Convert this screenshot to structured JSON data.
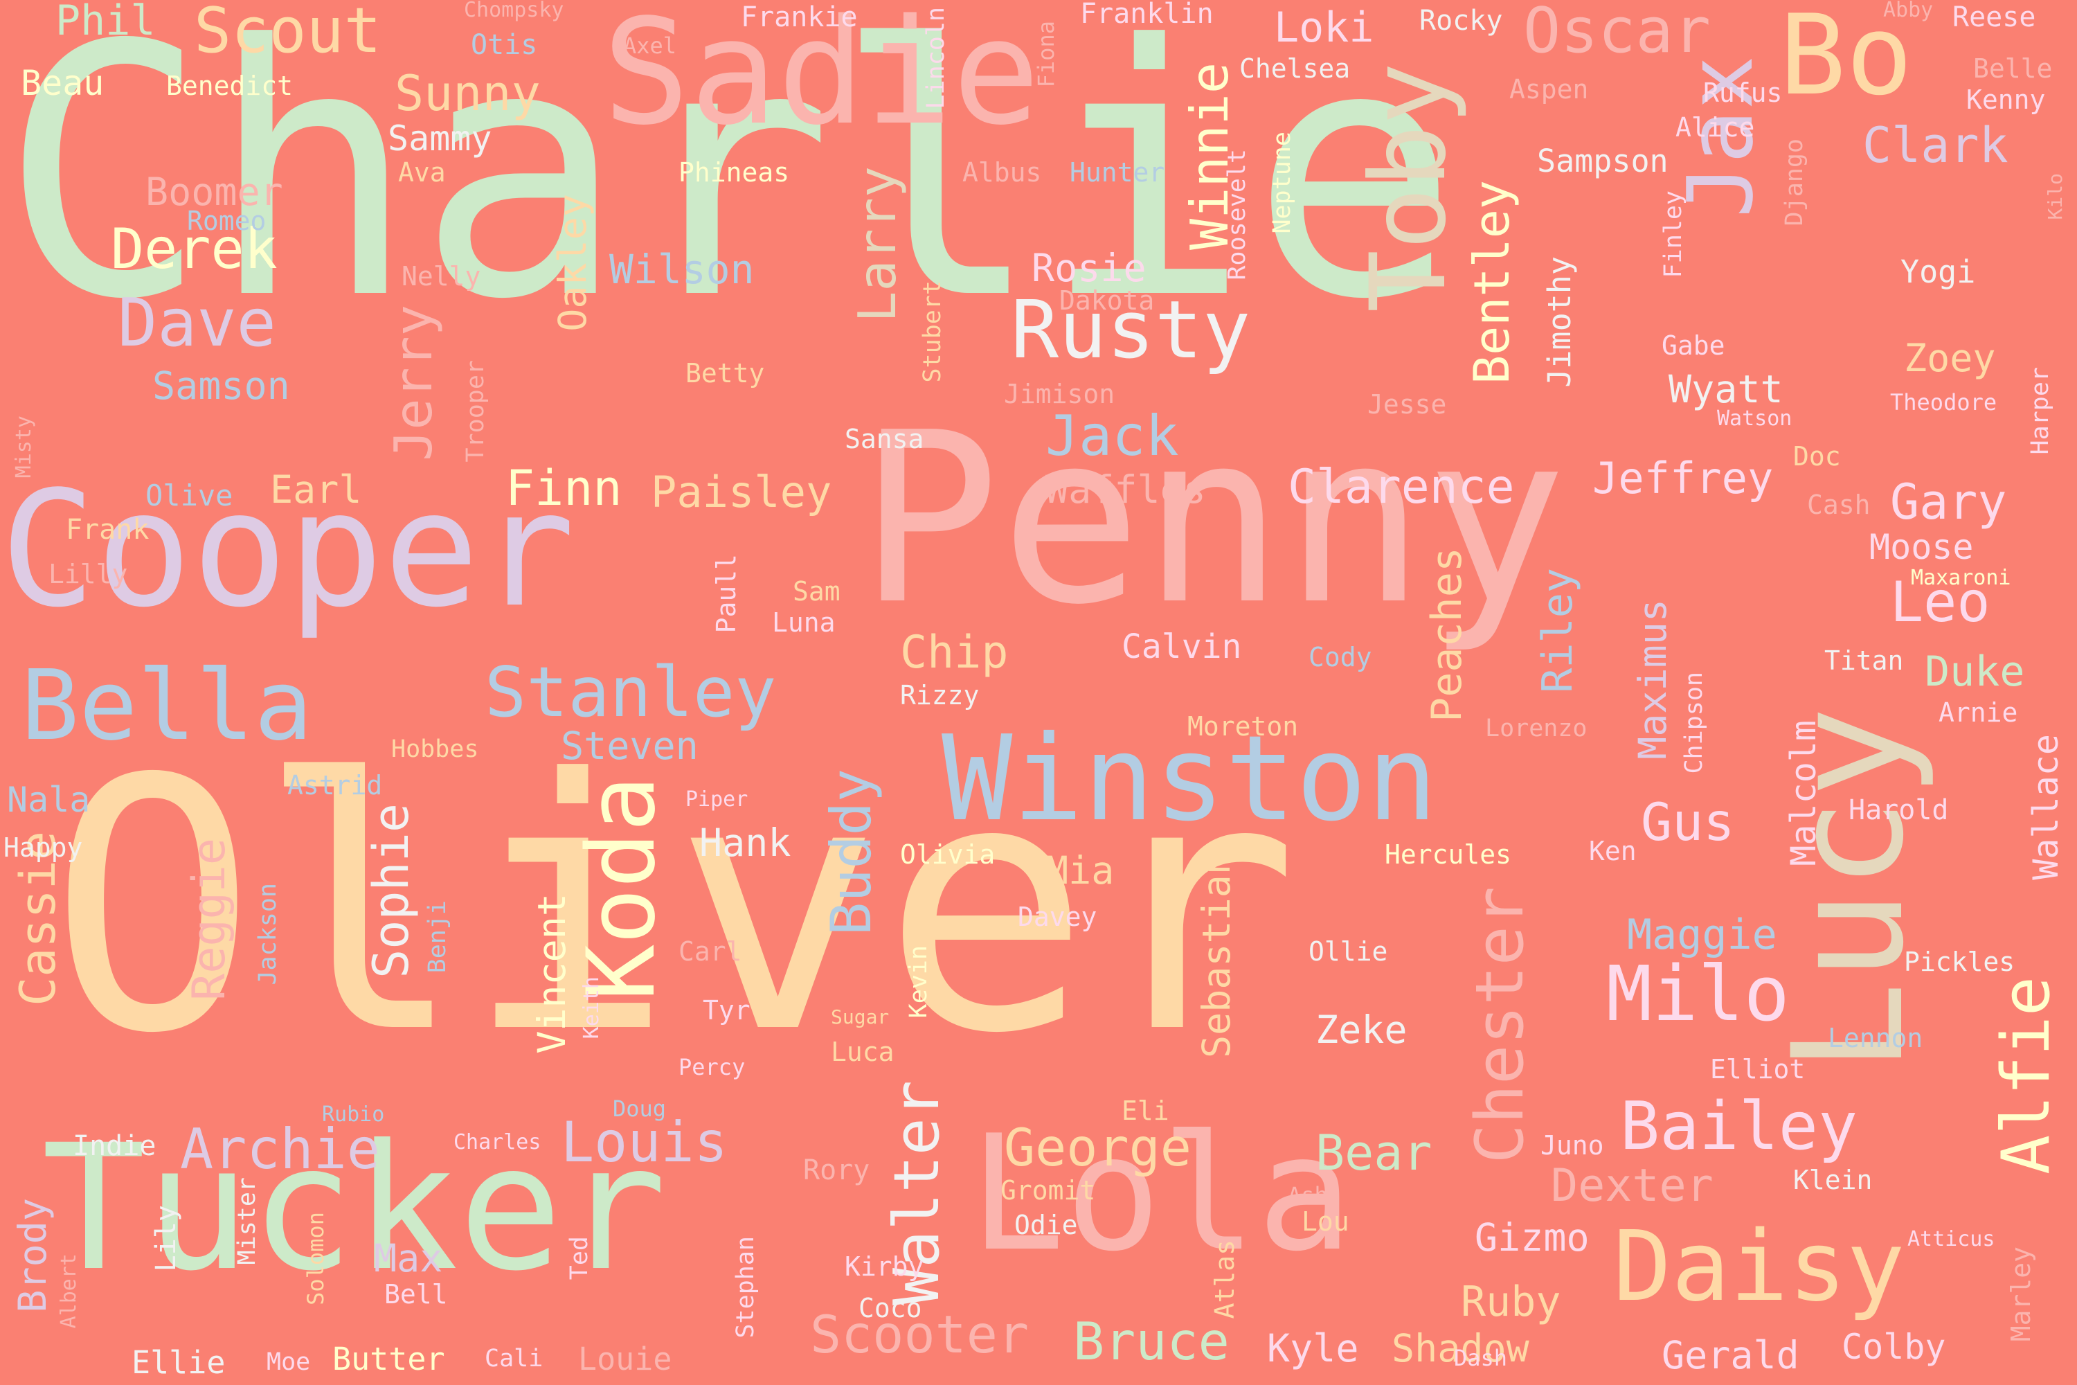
{
  "background_color": "#fa8072",
  "palette": {
    "green": "#cdeac9",
    "peach": "#fed9a6",
    "pink": "#fbb4ae",
    "blue": "#b3cde3",
    "lavender": "#decbe4",
    "tan": "#e5d8bd",
    "yellow": "#ffffcc",
    "rose": "#fddaec",
    "white": "#f2f2f2"
  },
  "words": [
    {
      "text": "Charlie",
      "color": "#cdeac9"
    },
    {
      "text": "Oliver",
      "color": "#fed9a6"
    },
    {
      "text": "Penny",
      "color": "#fbb4ae"
    },
    {
      "text": "Cooper",
      "color": "#decbe4"
    },
    {
      "text": "Tucker",
      "color": "#cdeac9"
    },
    {
      "text": "Sadie",
      "color": "#fbb4ae"
    },
    {
      "text": "Lola",
      "color": "#fbb4ae"
    },
    {
      "text": "Lucy",
      "color": "#e5d8bd"
    },
    {
      "text": "Winston",
      "color": "#b3cde3"
    },
    {
      "text": "Bo",
      "color": "#fed9a6"
    },
    {
      "text": "Daisy",
      "color": "#fed9a6"
    },
    {
      "text": "Toby",
      "color": "#e5d8bd"
    },
    {
      "text": "Bella",
      "color": "#b3cde3"
    },
    {
      "text": "Koda",
      "color": "#ffffcc"
    },
    {
      "text": "Jax",
      "color": "#decbe4"
    },
    {
      "text": "Rusty",
      "color": "#f2f2f2"
    },
    {
      "text": "Milo",
      "color": "#fddaec"
    },
    {
      "text": "Stanley",
      "color": "#b3cde3"
    },
    {
      "text": "Bailey",
      "color": "#fddaec"
    },
    {
      "text": "Chester",
      "color": "#fbb4ae"
    },
    {
      "text": "Alfie",
      "color": "#ffffcc"
    },
    {
      "text": "Walter",
      "color": "#f2f2f2"
    },
    {
      "text": "Archie",
      "color": "#decbe4"
    },
    {
      "text": "Louis",
      "color": "#decbe4"
    },
    {
      "text": "Scooter",
      "color": "#fbb4ae"
    },
    {
      "text": "Bruce",
      "color": "#cdeac9"
    },
    {
      "text": "Oscar",
      "color": "#fbb4ae"
    },
    {
      "text": "Scout",
      "color": "#fed9a6"
    },
    {
      "text": "Dave",
      "color": "#decbe4"
    },
    {
      "text": "Winnie",
      "color": "#ffffcc"
    },
    {
      "text": "Larry",
      "color": "#e5d8bd"
    },
    {
      "text": "George",
      "color": "#fed9a6"
    },
    {
      "text": "Buddy",
      "color": "#b3cde3"
    },
    {
      "text": "Jack",
      "color": "#b3cde3"
    },
    {
      "text": "Leo",
      "color": "#fddaec"
    },
    {
      "text": "Derek",
      "color": "#ffffcc"
    },
    {
      "text": "Sophie",
      "color": "#f2f2f2"
    },
    {
      "text": "Gus",
      "color": "#fddaec"
    },
    {
      "text": "Bentley",
      "color": "#ffffcc"
    },
    {
      "text": "Gary",
      "color": "#fddaec"
    },
    {
      "text": "Bear",
      "color": "#cdeac9"
    },
    {
      "text": "Dexter",
      "color": "#fbb4ae"
    },
    {
      "text": "Jerry",
      "color": "#fbb4ae"
    },
    {
      "text": "Sunny",
      "color": "#fed9a6"
    },
    {
      "text": "Clarence",
      "color": "#fddaec"
    },
    {
      "text": "Clark",
      "color": "#decbe4"
    },
    {
      "text": "Finn",
      "color": "#ffffcc"
    },
    {
      "text": "Paisley",
      "color": "#fed9a6"
    },
    {
      "text": "Jeffrey",
      "color": "#fddaec"
    },
    {
      "text": "Maggie",
      "color": "#b3cde3"
    },
    {
      "text": "Cassie",
      "color": "#fed9a6"
    },
    {
      "text": "Reggie",
      "color": "#fbb4ae"
    },
    {
      "text": "Riley",
      "color": "#b3cde3"
    },
    {
      "text": "Peaches",
      "color": "#fed9a6"
    },
    {
      "text": "Vincent",
      "color": "#ffffcc"
    },
    {
      "text": "Sebastian",
      "color": "#fed9a6"
    },
    {
      "text": "Chip",
      "color": "#fed9a6"
    },
    {
      "text": "Phil",
      "color": "#cdeac9"
    },
    {
      "text": "Wilson",
      "color": "#b3cde3"
    },
    {
      "text": "Samson",
      "color": "#b3cde3"
    },
    {
      "text": "Boomer",
      "color": "#fbb4ae"
    },
    {
      "text": "Oakley",
      "color": "#fed9a6"
    },
    {
      "text": "Rosie",
      "color": "#fddaec"
    },
    {
      "text": "Waffles",
      "color": "#fbb4ae"
    },
    {
      "text": "Wyatt",
      "color": "#f2f2f2"
    },
    {
      "text": "Zoey",
      "color": "#fed9a6"
    },
    {
      "text": "Moose",
      "color": "#fddaec"
    },
    {
      "text": "Duke",
      "color": "#cdeac9"
    },
    {
      "text": "Maximus",
      "color": "#decbe4"
    },
    {
      "text": "Malcolm",
      "color": "#fddaec"
    },
    {
      "text": "Wallace",
      "color": "#fddaec"
    },
    {
      "text": "Max",
      "color": "#decbe4"
    },
    {
      "text": "Brody",
      "color": "#decbe4"
    },
    {
      "text": "Earl",
      "color": "#fed9a6"
    },
    {
      "text": "Steven",
      "color": "#b3cde3"
    },
    {
      "text": "Hank",
      "color": "#f2f2f2"
    },
    {
      "text": "Mia",
      "color": "#fed9a6"
    },
    {
      "text": "Zeke",
      "color": "#f2f2f2"
    },
    {
      "text": "Gizmo",
      "color": "#fddaec"
    },
    {
      "text": "Ruby",
      "color": "#fed9a6"
    },
    {
      "text": "Shadow",
      "color": "#fed9a6"
    },
    {
      "text": "Kyle",
      "color": "#fddaec"
    },
    {
      "text": "Gerald",
      "color": "#fddaec"
    },
    {
      "text": "Colby",
      "color": "#fddaec"
    },
    {
      "text": "Calvin",
      "color": "#fddaec"
    },
    {
      "text": "Jimothy",
      "color": "#f2f2f2"
    },
    {
      "text": "Sammy",
      "color": "#f2f2f2"
    },
    {
      "text": "Beau",
      "color": "#ffffcc"
    },
    {
      "text": "Loki",
      "color": "#fddaec"
    },
    {
      "text": "Sampson",
      "color": "#f2f2f2"
    },
    {
      "text": "Ellie",
      "color": "#f2f2f2"
    },
    {
      "text": "Butter",
      "color": "#ffffcc"
    },
    {
      "text": "Nala",
      "color": "#b3cde3"
    },
    {
      "text": "Louie",
      "color": "#fbb4ae"
    },
    {
      "text": "Indie",
      "color": "#f2f2f2"
    },
    {
      "text": "Frankie",
      "color": "#fddaec"
    },
    {
      "text": "Franklin",
      "color": "#fddaec"
    },
    {
      "text": "Rocky",
      "color": "#f2f2f2"
    },
    {
      "text": "Reese",
      "color": "#fddaec"
    },
    {
      "text": "Otis",
      "color": "#b3cde3"
    },
    {
      "text": "Chelsea",
      "color": "#f2f2f2"
    },
    {
      "text": "Rufus",
      "color": "#fddaec"
    },
    {
      "text": "Aspen",
      "color": "#fbb4ae"
    },
    {
      "text": "Alice",
      "color": "#fddaec"
    },
    {
      "text": "Kenny",
      "color": "#fddaec"
    },
    {
      "text": "Belle",
      "color": "#fbb4ae"
    },
    {
      "text": "Benedict",
      "color": "#ffffcc"
    },
    {
      "text": "Phineas",
      "color": "#ffffcc"
    },
    {
      "text": "Hunter",
      "color": "#b3cde3"
    },
    {
      "text": "Albus",
      "color": "#fbb4ae"
    },
    {
      "text": "Roosevelt",
      "color": "#fddaec"
    },
    {
      "text": "Neptune",
      "color": "#ffffcc"
    },
    {
      "text": "Lincoln",
      "color": "#fddaec"
    },
    {
      "text": "Fiona",
      "color": "#fbb4ae"
    },
    {
      "text": "Axel",
      "color": "#fbb4ae"
    },
    {
      "text": "Chompsky",
      "color": "#fbb4ae"
    },
    {
      "text": "Abby",
      "color": "#fbb4ae"
    },
    {
      "text": "Ava",
      "color": "#fed9a6"
    },
    {
      "text": "Romeo",
      "color": "#b3cde3"
    },
    {
      "text": "Nelly",
      "color": "#fbb4ae"
    },
    {
      "text": "Dakota",
      "color": "#fbb4ae"
    },
    {
      "text": "Betty",
      "color": "#fed9a6"
    },
    {
      "text": "Gabe",
      "color": "#fddaec"
    },
    {
      "text": "Finley",
      "color": "#fddaec"
    },
    {
      "text": "Django",
      "color": "#fbb4ae"
    },
    {
      "text": "Yogi",
      "color": "#f2f2f2"
    },
    {
      "text": "Kilo",
      "color": "#fbb4ae"
    },
    {
      "text": "Theodore",
      "color": "#fddaec"
    },
    {
      "text": "Harper",
      "color": "#fddaec"
    },
    {
      "text": "Watson",
      "color": "#fddaec"
    },
    {
      "text": "Jesse",
      "color": "#fbb4ae"
    },
    {
      "text": "Jimison",
      "color": "#fbb4ae"
    },
    {
      "text": "Stubert",
      "color": "#fed9a6"
    },
    {
      "text": "Sansa",
      "color": "#f2f2f2"
    },
    {
      "text": "Trooper",
      "color": "#fbb4ae"
    },
    {
      "text": "Misty",
      "color": "#fbb4ae"
    },
    {
      "text": "Olive",
      "color": "#b3cde3"
    },
    {
      "text": "Frank",
      "color": "#fed9a6"
    },
    {
      "text": "Lilly",
      "color": "#fbb4ae"
    },
    {
      "text": "Doc",
      "color": "#fed9a6"
    },
    {
      "text": "Cash",
      "color": "#fbb4ae"
    },
    {
      "text": "Maxaroni",
      "color": "#ffffcc"
    },
    {
      "text": "Titan",
      "color": "#f2f2f2"
    },
    {
      "text": "Arnie",
      "color": "#fddaec"
    },
    {
      "text": "Harold",
      "color": "#fddaec"
    },
    {
      "text": "Paull",
      "color": "#fddaec"
    },
    {
      "text": "Sam",
      "color": "#fed9a6"
    },
    {
      "text": "Luna",
      "color": "#fddaec"
    },
    {
      "text": "Rizzy",
      "color": "#f2f2f2"
    },
    {
      "text": "Cody",
      "color": "#b3cde3"
    },
    {
      "text": "Lorenzo",
      "color": "#fbb4ae"
    },
    {
      "text": "Chipson",
      "color": "#fddaec"
    },
    {
      "text": "Moreton",
      "color": "#fed9a6"
    },
    {
      "text": "Hobbes",
      "color": "#fed9a6"
    },
    {
      "text": "Astrid",
      "color": "#b3cde3"
    },
    {
      "text": "Piper",
      "color": "#fddaec"
    },
    {
      "text": "Happy",
      "color": "#f2f2f2"
    },
    {
      "text": "Benji",
      "color": "#b3cde3"
    },
    {
      "text": "Jackson",
      "color": "#b3cde3"
    },
    {
      "text": "Olivia",
      "color": "#ffffcc"
    },
    {
      "text": "Davey",
      "color": "#fddaec"
    },
    {
      "text": "Hercules",
      "color": "#ffffcc"
    },
    {
      "text": "Ken",
      "color": "#fddaec"
    },
    {
      "text": "Ollie",
      "color": "#f2f2f2"
    },
    {
      "text": "Pickles",
      "color": "#f2f2f2"
    },
    {
      "text": "Carl",
      "color": "#fbb4ae"
    },
    {
      "text": "Keith",
      "color": "#fddaec"
    },
    {
      "text": "Kevin",
      "color": "#ffffcc"
    },
    {
      "text": "Tyr",
      "color": "#fddaec"
    },
    {
      "text": "Sugar",
      "color": "#fed9a6"
    },
    {
      "text": "Percy",
      "color": "#fddaec"
    },
    {
      "text": "Luca",
      "color": "#fed9a6"
    },
    {
      "text": "Lennon",
      "color": "#b3cde3"
    },
    {
      "text": "Elliot",
      "color": "#fddaec"
    },
    {
      "text": "Rubio",
      "color": "#b3cde3"
    },
    {
      "text": "Doug",
      "color": "#b3cde3"
    },
    {
      "text": "Eli",
      "color": "#fed9a6"
    },
    {
      "text": "Charles",
      "color": "#fddaec"
    },
    {
      "text": "Rory",
      "color": "#fbb4ae"
    },
    {
      "text": "Juno",
      "color": "#fddaec"
    },
    {
      "text": "Gromit",
      "color": "#fed9a6"
    },
    {
      "text": "Klein",
      "color": "#f2f2f2"
    },
    {
      "text": "Odie",
      "color": "#f2f2f2"
    },
    {
      "text": "Ash",
      "color": "#fbb4ae"
    },
    {
      "text": "Lou",
      "color": "#fed9a6"
    },
    {
      "text": "Atlas",
      "color": "#fed9a6"
    },
    {
      "text": "Atticus",
      "color": "#fddaec"
    },
    {
      "text": "Marley",
      "color": "#fbb4ae"
    },
    {
      "text": "Mister",
      "color": "#f2f2f2"
    },
    {
      "text": "Lily",
      "color": "#f2f2f2"
    },
    {
      "text": "Solomon",
      "color": "#fed9a6"
    },
    {
      "text": "Bell",
      "color": "#fddaec"
    },
    {
      "text": "Ted",
      "color": "#fddaec"
    },
    {
      "text": "Stephan",
      "color": "#fddaec"
    },
    {
      "text": "Kirby",
      "color": "#fddaec"
    },
    {
      "text": "Coco",
      "color": "#f2f2f2"
    },
    {
      "text": "Albert",
      "color": "#fbb4ae"
    },
    {
      "text": "Moe",
      "color": "#fddaec"
    },
    {
      "text": "Cali",
      "color": "#fddaec"
    },
    {
      "text": "Dash",
      "color": "#fddaec"
    }
  ]
}
